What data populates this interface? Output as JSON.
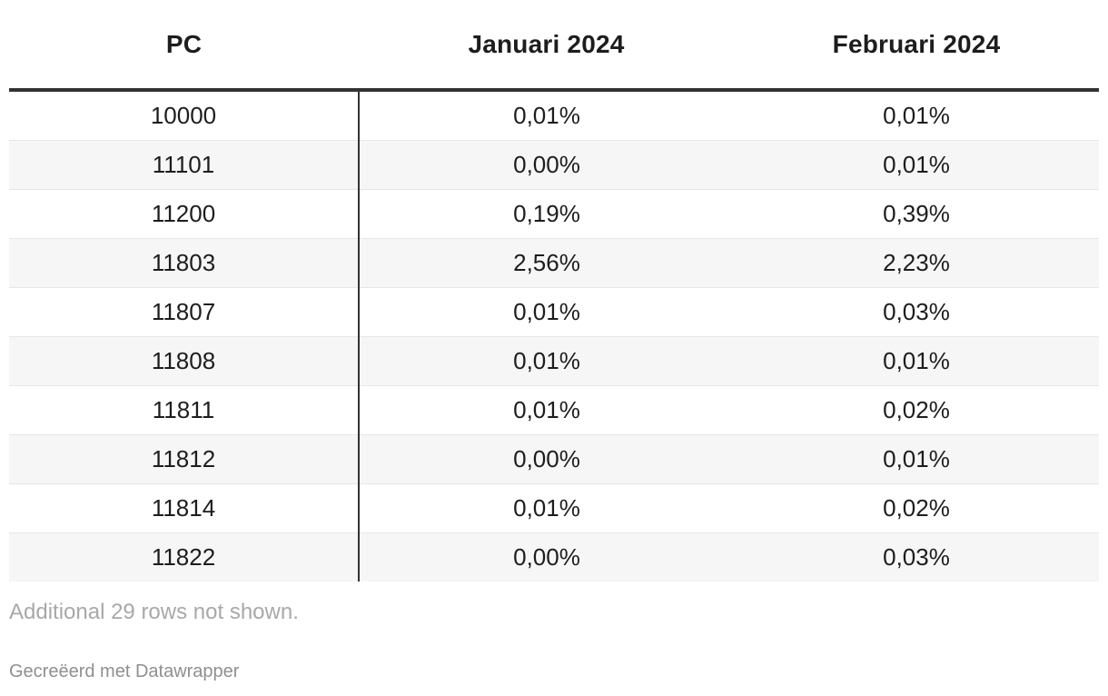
{
  "chart_data": {
    "type": "table",
    "columns": [
      "PC",
      "Januari 2024",
      "Februari 2024"
    ],
    "rows": [
      [
        "10000",
        "0,01%",
        "0,01%"
      ],
      [
        "11101",
        "0,00%",
        "0,01%"
      ],
      [
        "11200",
        "0,19%",
        "0,39%"
      ],
      [
        "11803",
        "2,56%",
        "2,23%"
      ],
      [
        "11807",
        "0,01%",
        "0,03%"
      ],
      [
        "11808",
        "0,01%",
        "0,01%"
      ],
      [
        "11811",
        "0,01%",
        "0,02%"
      ],
      [
        "11812",
        "0,00%",
        "0,01%"
      ],
      [
        "11814",
        "0,01%",
        "0,02%"
      ],
      [
        "11822",
        "0,00%",
        "0,03%"
      ]
    ],
    "notes": "Additional 29 rows not shown.",
    "byline": "Gecreëerd met Datawrapper"
  }
}
